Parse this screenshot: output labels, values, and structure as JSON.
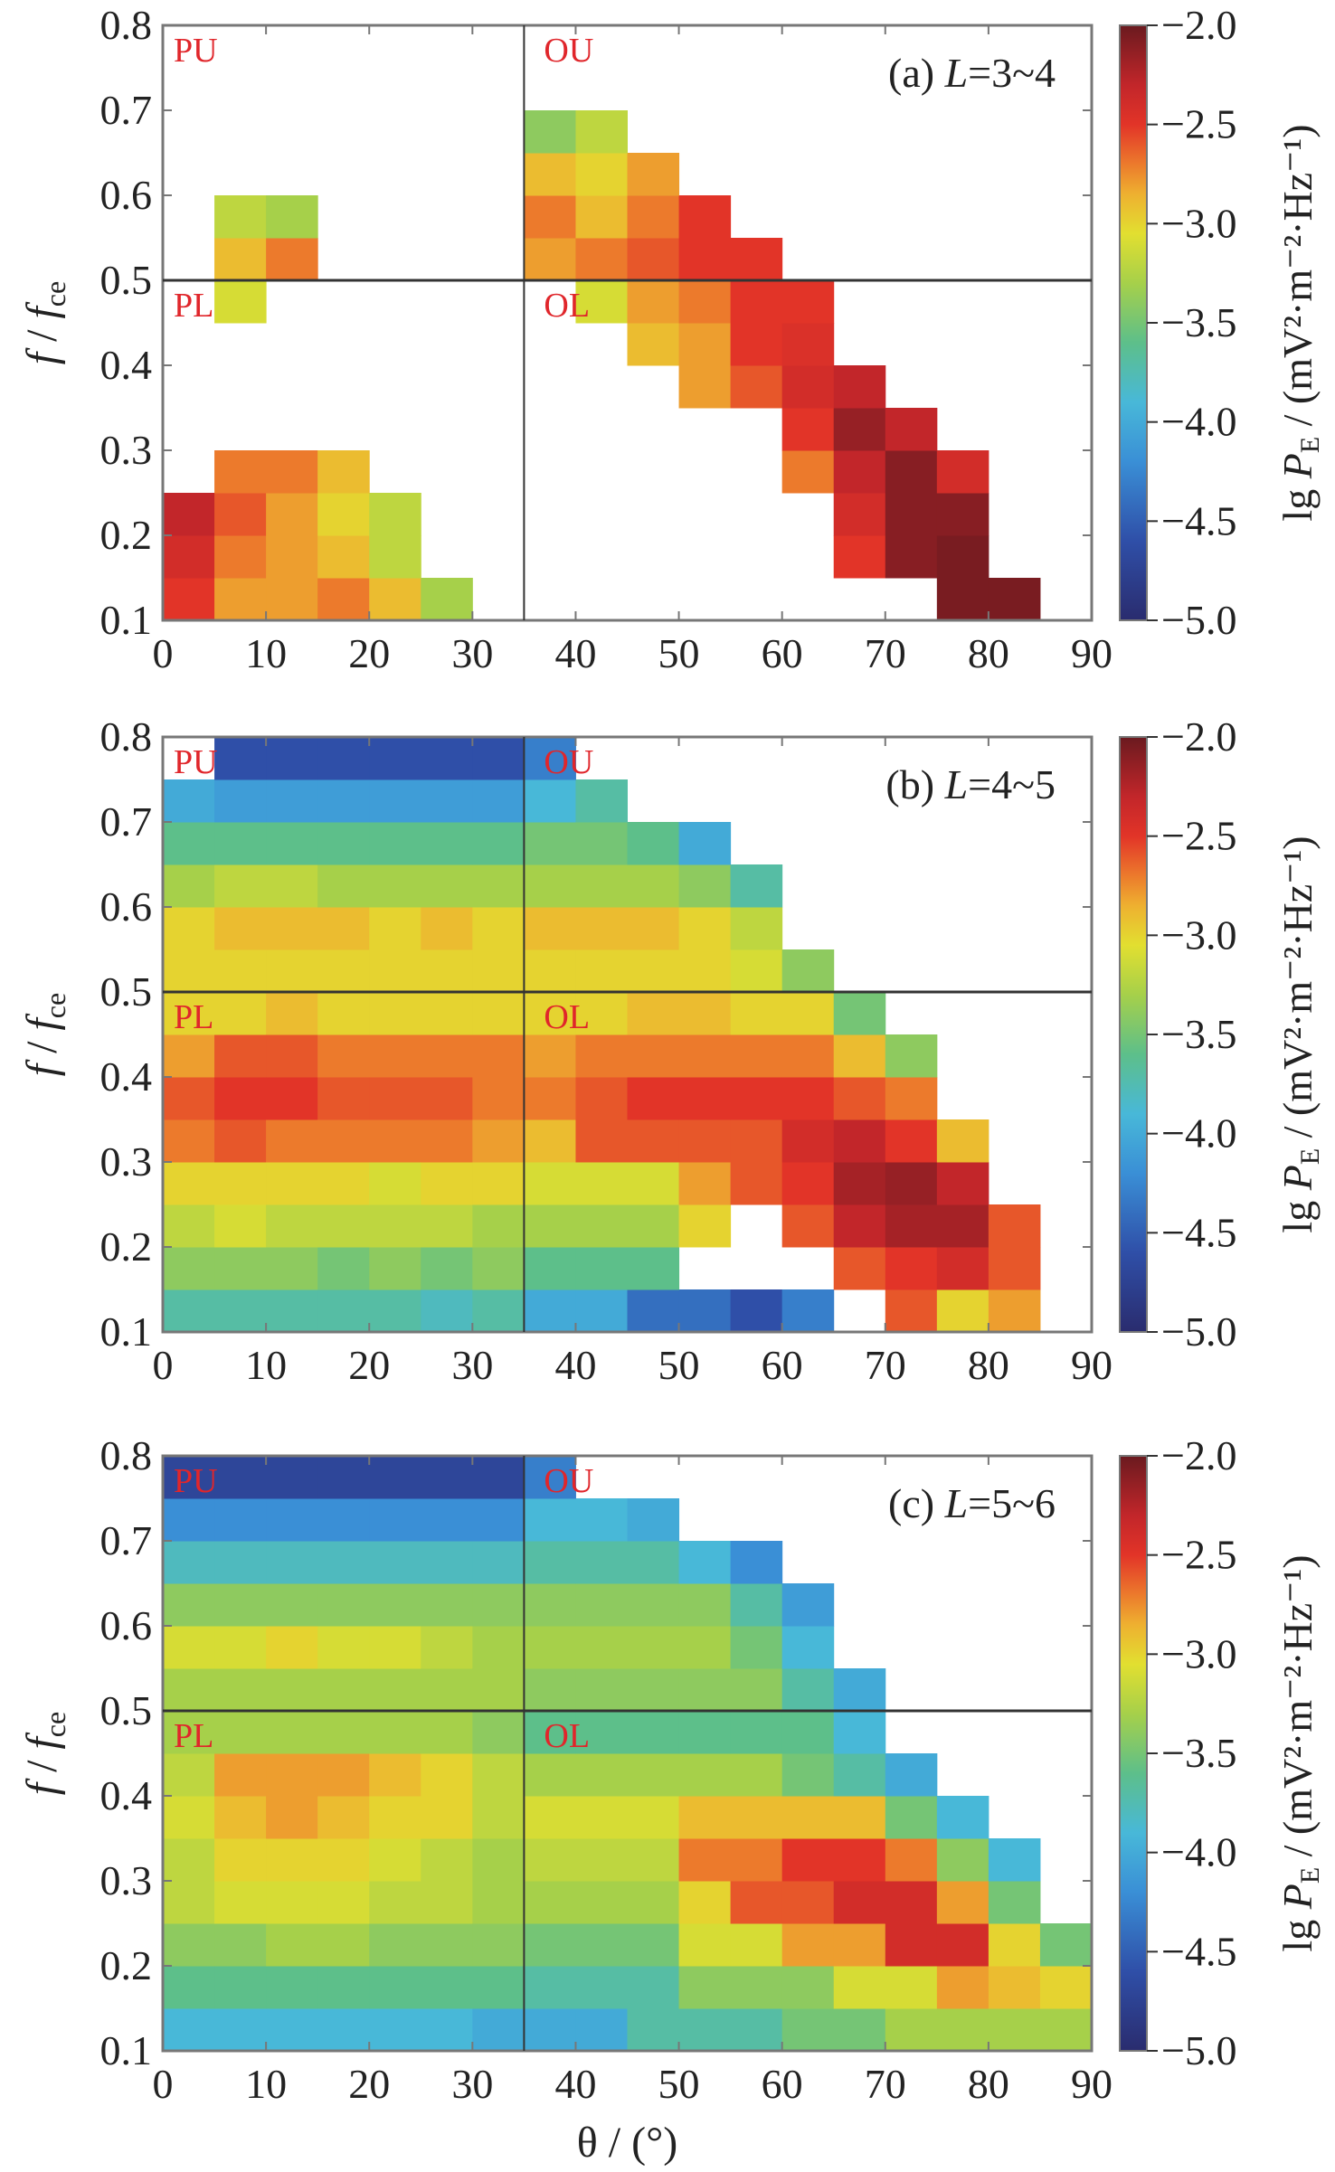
{
  "chart_data": [
    {
      "type": "heatmap",
      "title": "(a) L=3~4",
      "xlabel": "θ / (°)",
      "ylabel": "f / f_ce",
      "colorbar_label": "lg P_E / (mV²·m⁻²·Hz⁻¹)",
      "xlim": [
        0,
        90
      ],
      "ylim": [
        0.1,
        0.8
      ],
      "clim": [
        -5.0,
        -2.0
      ],
      "x_bin_edges_start": 0,
      "x_bin_width": 5,
      "y_bin_start": 0.1,
      "y_bin_height": 0.05,
      "z_rows_bottom_to_top": [
        [
          -2.5,
          -2.8,
          -2.8,
          -2.7,
          -2.9,
          -3.3,
          null,
          null,
          null,
          null,
          null,
          null,
          null,
          null,
          null,
          -2.05,
          -2.05,
          null
        ],
        [
          -2.4,
          -2.7,
          -2.8,
          -2.9,
          -3.2,
          null,
          null,
          null,
          null,
          null,
          null,
          null,
          null,
          -2.5,
          -2.1,
          -2.05,
          null,
          null
        ],
        [
          -2.3,
          -2.6,
          -2.8,
          -3.0,
          -3.2,
          null,
          null,
          null,
          null,
          null,
          null,
          null,
          null,
          -2.4,
          -2.1,
          -2.1,
          null,
          null
        ],
        [
          null,
          -2.7,
          -2.7,
          -2.9,
          null,
          null,
          null,
          null,
          null,
          null,
          null,
          null,
          -2.7,
          -2.3,
          -2.1,
          -2.4,
          null,
          null
        ],
        [
          null,
          null,
          null,
          null,
          null,
          null,
          null,
          null,
          null,
          null,
          null,
          null,
          -2.5,
          -2.15,
          -2.3,
          null,
          null,
          null
        ],
        [
          null,
          null,
          null,
          null,
          null,
          null,
          null,
          null,
          null,
          null,
          -2.8,
          -2.6,
          -2.4,
          -2.3,
          null,
          null,
          null,
          null
        ],
        [
          null,
          null,
          null,
          null,
          null,
          null,
          null,
          null,
          null,
          -2.9,
          -2.8,
          -2.5,
          -2.45,
          null,
          null,
          null,
          null,
          null
        ],
        [
          null,
          -3.1,
          null,
          null,
          null,
          null,
          null,
          null,
          -3.1,
          -2.8,
          -2.7,
          -2.5,
          -2.5,
          null,
          null,
          null,
          null,
          null
        ],
        [
          null,
          -2.9,
          -2.7,
          null,
          null,
          null,
          null,
          -2.8,
          -2.7,
          -2.6,
          -2.5,
          -2.5,
          null,
          null,
          null,
          null,
          null,
          null
        ],
        [
          null,
          -3.2,
          -3.3,
          null,
          null,
          null,
          null,
          -2.7,
          -2.9,
          -2.7,
          -2.5,
          null,
          null,
          null,
          null,
          null,
          null,
          null
        ],
        [
          null,
          null,
          null,
          null,
          null,
          null,
          null,
          -2.9,
          -3.0,
          -2.8,
          null,
          null,
          null,
          null,
          null,
          null,
          null,
          null
        ],
        [
          null,
          null,
          null,
          null,
          null,
          null,
          null,
          -3.4,
          -3.2,
          null,
          null,
          null,
          null,
          null,
          null,
          null,
          null,
          null
        ],
        [
          null,
          null,
          null,
          null,
          null,
          null,
          null,
          null,
          null,
          null,
          null,
          null,
          null,
          null,
          null,
          null,
          null,
          null
        ],
        [
          null,
          null,
          null,
          null,
          null,
          null,
          null,
          null,
          null,
          null,
          null,
          null,
          null,
          null,
          null,
          null,
          null,
          null
        ]
      ]
    },
    {
      "type": "heatmap",
      "title": "(b) L=4~5",
      "xlabel": "θ / (°)",
      "ylabel": "f / f_ce",
      "colorbar_label": "lg P_E / (mV²·m⁻²·Hz⁻¹)",
      "xlim": [
        0,
        90
      ],
      "ylim": [
        0.1,
        0.8
      ],
      "clim": [
        -5.0,
        -2.0
      ],
      "x_bin_edges_start": 0,
      "x_bin_width": 5,
      "y_bin_start": 0.1,
      "y_bin_height": 0.05,
      "z_rows_bottom_to_top": [
        [
          -3.7,
          -3.7,
          -3.7,
          -3.7,
          -3.7,
          -3.8,
          -3.7,
          -4.0,
          -4.0,
          -4.4,
          -4.4,
          -4.6,
          -4.3,
          null,
          -2.6,
          -3.0,
          -2.8,
          null
        ],
        [
          -3.4,
          -3.4,
          -3.4,
          -3.5,
          -3.4,
          -3.5,
          -3.4,
          -3.6,
          -3.6,
          -3.6,
          null,
          null,
          null,
          -2.6,
          -2.5,
          -2.4,
          -2.6,
          null
        ],
        [
          -3.2,
          -3.1,
          -3.2,
          -3.2,
          -3.2,
          -3.2,
          -3.3,
          -3.3,
          -3.3,
          -3.3,
          -3.0,
          null,
          -2.6,
          -2.3,
          -2.2,
          -2.2,
          -2.6,
          null
        ],
        [
          -3.0,
          -3.0,
          -3.0,
          -3.0,
          -3.1,
          -3.0,
          -3.0,
          -3.1,
          -3.1,
          -3.1,
          -2.8,
          -2.6,
          -2.5,
          -2.2,
          -2.15,
          -2.3,
          null,
          null
        ],
        [
          -2.7,
          -2.6,
          -2.7,
          -2.7,
          -2.7,
          -2.7,
          -2.8,
          -2.9,
          -2.6,
          -2.6,
          -2.6,
          -2.6,
          -2.4,
          -2.3,
          -2.5,
          -2.9,
          null,
          null
        ],
        [
          -2.6,
          -2.5,
          -2.5,
          -2.6,
          -2.6,
          -2.6,
          -2.7,
          -2.7,
          -2.6,
          -2.5,
          -2.5,
          -2.5,
          -2.5,
          -2.6,
          -2.7,
          null,
          null,
          null
        ],
        [
          -2.8,
          -2.6,
          -2.6,
          -2.7,
          -2.7,
          -2.7,
          -2.7,
          -2.8,
          -2.7,
          -2.7,
          -2.7,
          -2.7,
          -2.7,
          -2.9,
          -3.4,
          null,
          null,
          null
        ],
        [
          -3.0,
          -3.0,
          -2.9,
          -3.0,
          -3.0,
          -3.0,
          -3.0,
          -3.0,
          -3.0,
          -2.9,
          -2.9,
          -3.0,
          -3.0,
          -3.5,
          null,
          null,
          null,
          null
        ],
        [
          -3.0,
          -3.0,
          -3.0,
          -3.0,
          -3.0,
          -3.0,
          -3.0,
          -3.0,
          -3.0,
          -3.0,
          -3.0,
          -3.1,
          -3.4,
          null,
          null,
          null,
          null,
          null
        ],
        [
          -3.0,
          -2.9,
          -2.9,
          -2.9,
          -3.0,
          -2.9,
          -3.0,
          -2.9,
          -2.9,
          -2.9,
          -3.0,
          -3.2,
          null,
          null,
          null,
          null,
          null,
          null
        ],
        [
          -3.3,
          -3.2,
          -3.2,
          -3.3,
          -3.3,
          -3.3,
          -3.3,
          -3.3,
          -3.3,
          -3.3,
          -3.4,
          -3.7,
          null,
          null,
          null,
          null,
          null,
          null
        ],
        [
          -3.6,
          -3.6,
          -3.6,
          -3.6,
          -3.6,
          -3.6,
          -3.6,
          -3.5,
          -3.5,
          -3.6,
          -4.0,
          null,
          null,
          null,
          null,
          null,
          null,
          null
        ],
        [
          -4.0,
          -4.1,
          -4.1,
          -4.1,
          -4.1,
          -4.1,
          -4.1,
          -3.9,
          -3.7,
          null,
          null,
          null,
          null,
          null,
          null,
          null,
          null,
          null
        ],
        [
          null,
          -4.6,
          -4.6,
          -4.6,
          -4.6,
          -4.6,
          -4.6,
          -4.3,
          null,
          null,
          null,
          null,
          null,
          null,
          null,
          null,
          null,
          null
        ]
      ]
    },
    {
      "type": "heatmap",
      "title": "(c) L=5~6",
      "xlabel": "θ / (°)",
      "ylabel": "f / f_ce",
      "colorbar_label": "lg P_E / (mV²·m⁻²·Hz⁻¹)",
      "xlim": [
        0,
        90
      ],
      "ylim": [
        0.1,
        0.8
      ],
      "clim": [
        -5.0,
        -2.0
      ],
      "x_bin_edges_start": 0,
      "x_bin_width": 5,
      "y_bin_start": 0.1,
      "y_bin_height": 0.05,
      "z_rows_bottom_to_top": [
        [
          -3.9,
          -3.9,
          -3.9,
          -3.9,
          -3.9,
          -3.9,
          -4.0,
          -4.0,
          -4.0,
          -3.7,
          -3.7,
          -3.7,
          -3.5,
          -3.5,
          -3.3,
          -3.3,
          -3.3,
          -3.3
        ],
        [
          -3.6,
          -3.6,
          -3.6,
          -3.6,
          -3.6,
          -3.6,
          -3.6,
          -3.7,
          -3.7,
          -3.7,
          -3.4,
          -3.4,
          -3.4,
          -3.1,
          -3.1,
          -2.8,
          -2.9,
          -3.0
        ],
        [
          -3.4,
          -3.4,
          -3.3,
          -3.3,
          -3.4,
          -3.4,
          -3.4,
          -3.5,
          -3.5,
          -3.5,
          -3.1,
          -3.1,
          -2.8,
          -2.8,
          -2.4,
          -2.4,
          -3.0,
          -3.5
        ],
        [
          -3.2,
          -3.1,
          -3.1,
          -3.1,
          -3.2,
          -3.2,
          -3.3,
          -3.3,
          -3.3,
          -3.3,
          -3.0,
          -2.6,
          -2.6,
          -2.4,
          -2.4,
          -2.8,
          -3.5,
          null
        ],
        [
          -3.2,
          -3.0,
          -3.0,
          -3.0,
          -3.1,
          -3.2,
          -3.3,
          -3.2,
          -3.2,
          -3.2,
          -2.7,
          -2.7,
          -2.5,
          -2.5,
          -2.7,
          -3.4,
          -3.9,
          null
        ],
        [
          -3.1,
          -2.9,
          -2.8,
          -2.9,
          -3.0,
          -3.0,
          -3.2,
          -3.1,
          -3.1,
          -3.1,
          -2.9,
          -2.9,
          -2.9,
          -2.9,
          -3.5,
          -3.9,
          null,
          null
        ],
        [
          -3.2,
          -2.8,
          -2.8,
          -2.8,
          -2.9,
          -3.0,
          -3.2,
          -3.3,
          -3.3,
          -3.3,
          -3.3,
          -3.3,
          -3.5,
          -3.7,
          -4.0,
          null,
          null,
          null
        ],
        [
          -3.3,
          -3.3,
          -3.3,
          -3.3,
          -3.3,
          -3.3,
          -3.4,
          -3.6,
          -3.6,
          -3.6,
          -3.6,
          -3.6,
          -3.6,
          -3.9,
          null,
          null,
          null,
          null
        ],
        [
          -3.3,
          -3.3,
          -3.3,
          -3.3,
          -3.3,
          -3.3,
          -3.3,
          -3.4,
          -3.4,
          -3.4,
          -3.4,
          -3.4,
          -3.7,
          -4.0,
          null,
          null,
          null,
          null
        ],
        [
          -3.1,
          -3.1,
          -3.0,
          -3.1,
          -3.1,
          -3.2,
          -3.3,
          -3.3,
          -3.3,
          -3.3,
          -3.3,
          -3.5,
          -3.9,
          null,
          null,
          null,
          null,
          null
        ],
        [
          -3.4,
          -3.4,
          -3.4,
          -3.4,
          -3.4,
          -3.4,
          -3.4,
          -3.4,
          -3.4,
          -3.4,
          -3.4,
          -3.7,
          -4.1,
          null,
          null,
          null,
          null,
          null
        ],
        [
          -3.8,
          -3.8,
          -3.8,
          -3.8,
          -3.8,
          -3.8,
          -3.8,
          -3.7,
          -3.7,
          -3.7,
          -3.9,
          -4.2,
          null,
          null,
          null,
          null,
          null,
          null
        ],
        [
          -4.2,
          -4.2,
          -4.2,
          -4.2,
          -4.2,
          -4.2,
          -4.2,
          -3.9,
          -3.9,
          -4.0,
          null,
          null,
          null,
          null,
          null,
          null,
          null,
          null
        ],
        [
          -4.7,
          -4.7,
          -4.7,
          -4.7,
          -4.7,
          -4.7,
          -4.7,
          -4.3,
          null,
          null,
          null,
          null,
          null,
          null,
          null,
          null,
          null,
          null
        ]
      ]
    }
  ],
  "axes": {
    "x_ticks": [
      "0",
      "10",
      "20",
      "30",
      "40",
      "50",
      "60",
      "70",
      "80",
      "90"
    ],
    "x_tick_values": [
      0,
      10,
      20,
      30,
      40,
      50,
      60,
      70,
      80,
      90
    ],
    "y_ticks": [
      "0.1",
      "0.2",
      "0.3",
      "0.4",
      "0.5",
      "0.6",
      "0.7",
      "0.8"
    ],
    "y_tick_values": [
      0.1,
      0.2,
      0.3,
      0.4,
      0.5,
      0.6,
      0.7,
      0.8
    ],
    "colorbar_ticks": [
      "−2.0",
      "−2.5",
      "−3.0",
      "−3.5",
      "−4.0",
      "−4.5",
      "−5.0"
    ],
    "colorbar_tick_values": [
      -2.0,
      -2.5,
      -3.0,
      -3.5,
      -4.0,
      -4.5,
      -5.0
    ],
    "ylabel_f": "f",
    "ylabel_sep": " / ",
    "ylabel_fce": "f",
    "ylabel_sub": "ce",
    "cbar_label_prefix": "lg ",
    "cbar_label_P": "P",
    "cbar_label_sub": "E",
    "cbar_label_unit": " / (mV²·m⁻²·Hz⁻¹)",
    "xlabel": "θ / (°)"
  },
  "quadrants": {
    "divider_theta": 35,
    "divider_f": 0.5,
    "labels": [
      "PU",
      "OU",
      "PL",
      "OL"
    ]
  },
  "panel_labels": [
    {
      "prefix": "(a) ",
      "L": "L",
      "range": "=3~4"
    },
    {
      "prefix": "(b) ",
      "L": "L",
      "range": "=4~5"
    },
    {
      "prefix": "(c) ",
      "L": "L",
      "range": "=5~6"
    }
  ],
  "colors": {
    "quadrant_label": "#e0262b",
    "divider": "#333333",
    "colormap": [
      [
        -5.0,
        "#2a2c6e"
      ],
      [
        -4.6,
        "#2f4fa8"
      ],
      [
        -4.2,
        "#3a8fd6"
      ],
      [
        -3.9,
        "#48b8d8"
      ],
      [
        -3.6,
        "#5dbf8a"
      ],
      [
        -3.3,
        "#a6d04a"
      ],
      [
        -3.05,
        "#e2df30"
      ],
      [
        -2.85,
        "#eeb030"
      ],
      [
        -2.7,
        "#ec7a2c"
      ],
      [
        -2.5,
        "#e23428"
      ],
      [
        -2.3,
        "#c2262a"
      ],
      [
        -2.0,
        "#6a1a1f"
      ]
    ]
  }
}
